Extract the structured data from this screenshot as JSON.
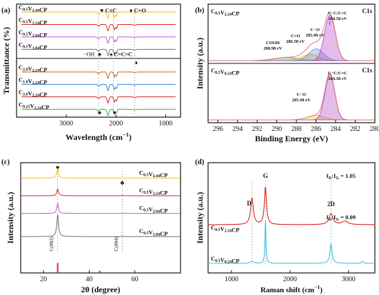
{
  "colors": {
    "yellow": "#f2c01c",
    "red": "#dd1f1f",
    "purple": "#c450e0",
    "gray": "#6e6e6e",
    "orange": "#c8641a",
    "blue": "#2f7fd3",
    "green": "#3cb043",
    "cyan": "#38c8d6",
    "violet": "#b03ec8",
    "steelblue": "#5b8fd8"
  },
  "chart_data": [
    {
      "id": "a",
      "type": "line",
      "panel_label": "(a)",
      "xlabel": "Wavelength (cm",
      "xlabel_sup": "−1",
      "xlabel_tail": ")",
      "ylabel": "Transmittance (%)",
      "xlim": [
        4000,
        700
      ],
      "xticks": [
        "3000",
        "2000",
        "1000"
      ],
      "xtick_values": [
        3000,
        2000,
        1000
      ],
      "series": [
        {
          "name": "C0.5V2.44CP",
          "base": "C",
          "s1": "0.5",
          "m": "V",
          "s2": "2.44",
          "tail": "CP",
          "color": "yellow",
          "offset": 0.93
        },
        {
          "name": "C0.5V2.24CP",
          "base": "C",
          "s1": "0.5",
          "m": "V",
          "s2": "2.24",
          "tail": "CP",
          "color": "red",
          "offset": 0.82
        },
        {
          "name": "C0.5V2.04CP",
          "base": "C",
          "s1": "0.5",
          "m": "V",
          "s2": "2.04",
          "tail": "CP",
          "color": "purple",
          "offset": 0.71
        },
        {
          "name": "C0.5V1.84CP",
          "base": "C",
          "s1": "0.5",
          "m": "V",
          "s2": "1.84",
          "tail": "CP",
          "color": "gray",
          "offset": 0.6
        },
        {
          "name": "C2.0V2.24CP",
          "base": "C",
          "s1": "2.0",
          "m": "V",
          "s2": "2.24",
          "tail": "CP",
          "color": "orange",
          "offset": 0.4
        },
        {
          "name": "C1.0V2.24CP",
          "base": "C",
          "s1": "1.0",
          "m": "V",
          "s2": "2.24",
          "tail": "CP",
          "color": "blue",
          "offset": 0.29
        },
        {
          "name": "C2.0V2.24CP",
          "base": "C",
          "s1": "2.0",
          "m": "V",
          "s2": "2.24",
          "tail": "CP",
          "color": "red",
          "offset": 0.18
        },
        {
          "name": "C0.25V2.24CP",
          "base": "C",
          "s1": "0.25",
          "m": "V",
          "s2": "2.24",
          "tail": "CP",
          "color": "green",
          "offset": 0.07
        }
      ],
      "annotations": {
        "heart_cc": "♥ C≡C",
        "diamond_co": "♦ C=O",
        "oh": "−OH",
        "club": "♣",
        "spade_ccc": "♠ C=C=C",
        "bottom_marks": [
          "♣",
          "♥"
        ]
      },
      "dashed_x": [
        2350,
        2050,
        1620
      ]
    },
    {
      "id": "b",
      "type": "area",
      "panel_label": "(b)",
      "xlabel": "Binding Energy (eV)",
      "ylabel": "Intensity (a.u.)",
      "xlim": [
        297,
        280
      ],
      "xticks": [
        "296",
        "294",
        "292",
        "290",
        "288",
        "286",
        "284",
        "282",
        "280"
      ],
      "xtick_values": [
        296,
        294,
        292,
        290,
        288,
        286,
        284,
        282,
        280
      ],
      "top": {
        "sample": "C0.5V2.24CP",
        "sample_parts": {
          "base": "C",
          "s1": "0.5",
          "m": "V",
          "s2": "2.24",
          "tail": "CP"
        },
        "core": "C1s",
        "peaks": [
          {
            "label": "C−C/C=C",
            "energy": "284.58 eV",
            "center": 284.58,
            "height": 1.0,
            "width": 0.55,
            "color": "violet"
          },
          {
            "label": "C−O",
            "energy": "285.98 eV",
            "center": 285.98,
            "height": 0.26,
            "width": 0.75,
            "color": "steelblue"
          },
          {
            "label": "C=O",
            "energy": "286.58 eV",
            "center": 286.58,
            "height": 0.14,
            "width": 0.9,
            "color": "yellow"
          },
          {
            "label": "COOH",
            "energy": "288.98 eV",
            "center": 288.98,
            "height": 0.07,
            "width": 1.3,
            "color": "green"
          }
        ]
      },
      "bottom": {
        "sample": "C0.5V0.24CP",
        "sample_parts": {
          "base": "C",
          "s1": "0.5",
          "m": "V",
          "s2": "0.24",
          "tail": "CP"
        },
        "core": "C1s",
        "peaks": [
          {
            "label": "C−C/C=C",
            "energy": "284.58 eV",
            "center": 284.58,
            "height": 1.0,
            "width": 0.5,
            "color": "violet"
          },
          {
            "label": "C−O",
            "energy": "285.98 eV",
            "center": 285.98,
            "height": 0.1,
            "width": 0.9,
            "color": "yellow"
          }
        ]
      }
    },
    {
      "id": "c",
      "type": "line",
      "panel_label": "(c)",
      "xlabel": "2θ (degree)",
      "ylabel": "Intensity (a.u.)",
      "xlim": [
        10,
        80
      ],
      "xticks": [
        "20",
        "40",
        "60"
      ],
      "xtick_values": [
        20,
        40,
        60
      ],
      "series": [
        {
          "name": "C0.5V2.44CP",
          "base": "C",
          "s1": "0.5",
          "m": "V",
          "s2": "2.44",
          "tail": "CP",
          "color": "yellow",
          "peak_height": 0.09
        },
        {
          "name": "C0.5V2.24CP",
          "base": "C",
          "s1": "0.5",
          "m": "V",
          "s2": "2.24",
          "tail": "CP",
          "color": "red",
          "peak_height": 0.06
        },
        {
          "name": "C0.5V2.04CP",
          "base": "C",
          "s1": "0.5",
          "m": "V",
          "s2": "2.04",
          "tail": "CP",
          "color": "purple",
          "peak_height": 0.09
        },
        {
          "name": "C0.5V1.84CP",
          "base": "C",
          "s1": "0.5",
          "m": "V",
          "s2": "1.84",
          "tail": "CP",
          "color": "gray",
          "peak_height": 0.2
        }
      ],
      "peak_positions": [
        26.2,
        54.5
      ],
      "reference_lines": [
        {
          "x": 26.2,
          "height": 0.09
        },
        {
          "x": 44.6,
          "height": 0.02
        }
      ],
      "annotations": {
        "heart": "♥",
        "club": "♣",
        "c002": "C(002)",
        "c004": "C(004)"
      }
    },
    {
      "id": "d",
      "type": "line",
      "panel_label": "(d)",
      "xlabel": "Raman shift (cm",
      "xlabel_sup": "−1",
      "xlabel_tail": ")",
      "ylabel": "Intensity (a.u.)",
      "xlim": [
        600,
        3450
      ],
      "xticks": [
        "1000",
        "2000",
        "3000"
      ],
      "xtick_values": [
        1000,
        2000,
        3000
      ],
      "bands": {
        "D": 1350,
        "G": 1580,
        "2D": 2700
      },
      "series": [
        {
          "name": "C0.5V2.24CP",
          "base": "C",
          "s1": "0.5",
          "m": "V",
          "s2": "2.24",
          "tail": "CP",
          "color": "red",
          "ratio": "1.05"
        },
        {
          "name": "C0.5V0.24CP",
          "base": "C",
          "s1": "0.5",
          "m": "V",
          "s2": "0.24",
          "tail": "CP",
          "color": "cyan",
          "ratio": "0.09"
        }
      ],
      "ratio_label": {
        "i": "I",
        "d": "D",
        "colon": ":I",
        "g": "G",
        "eq": " = "
      },
      "band_labels": [
        "D",
        "G",
        "2D"
      ]
    }
  ]
}
